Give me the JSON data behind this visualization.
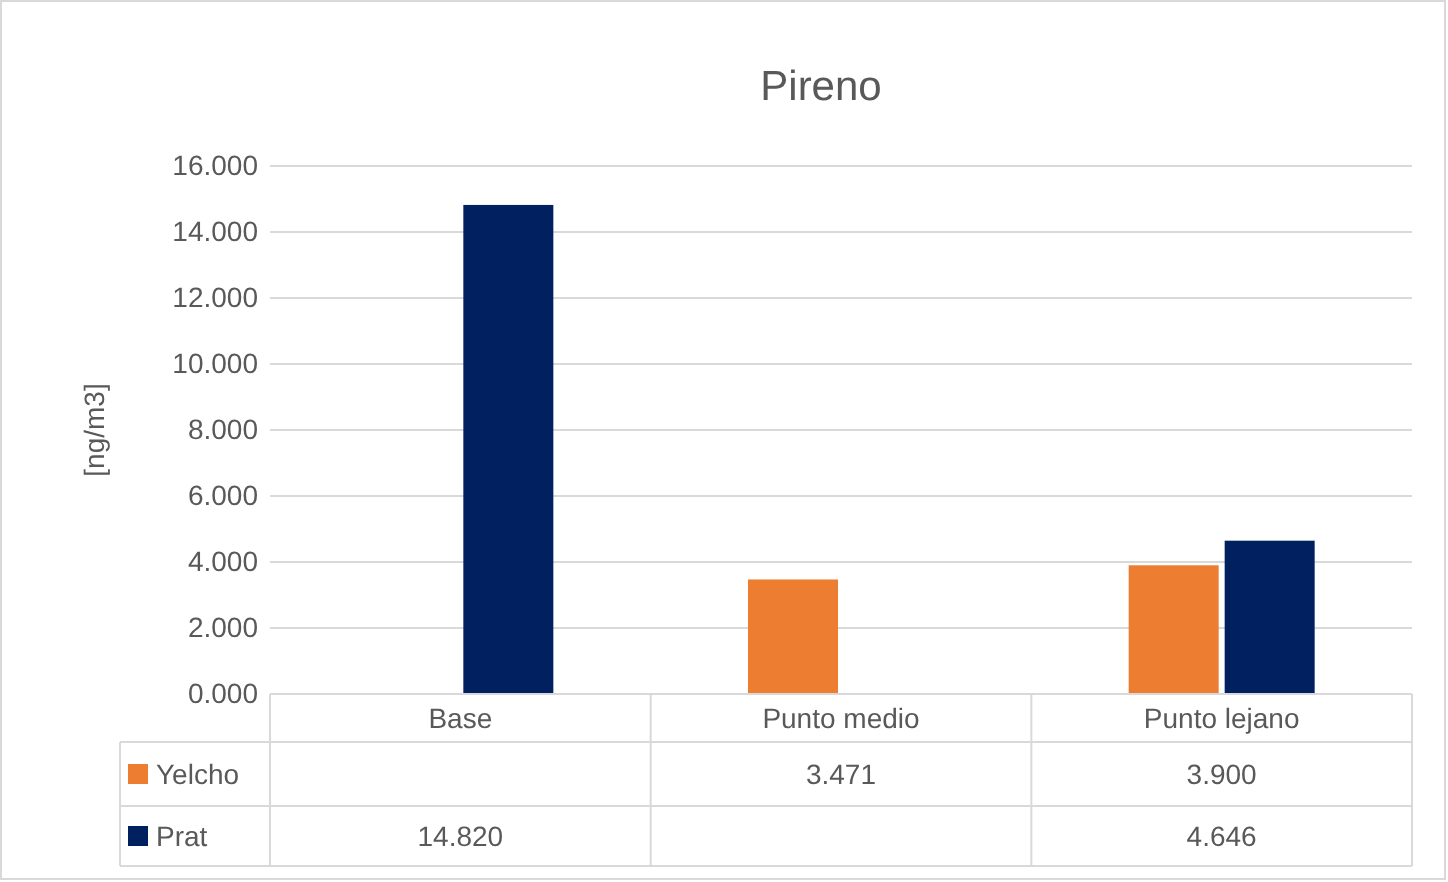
{
  "chart_data": {
    "type": "bar",
    "title": "Pireno",
    "ylabel": "[ng/m3]",
    "categories": [
      "Base",
      "Punto medio",
      "Punto lejano"
    ],
    "series": [
      {
        "name": "Yelcho",
        "color": "#ed7d31",
        "values": [
          null,
          3.471,
          3.9
        ],
        "value_labels": [
          null,
          "3.471",
          "3.900"
        ]
      },
      {
        "name": "Prat",
        "color": "#002060",
        "values": [
          14.82,
          null,
          4.646
        ],
        "value_labels": [
          "14.820",
          null,
          "4.646"
        ]
      }
    ],
    "ylim": [
      0,
      16
    ],
    "yticks": [
      {
        "value": 0,
        "label": "0.000"
      },
      {
        "value": 2,
        "label": "2.000"
      },
      {
        "value": 4,
        "label": "4.000"
      },
      {
        "value": 6,
        "label": "6.000"
      },
      {
        "value": 8,
        "label": "8.000"
      },
      {
        "value": 10,
        "label": "10.000"
      },
      {
        "value": 12,
        "label": "12.000"
      },
      {
        "value": 14,
        "label": "14.000"
      },
      {
        "value": 16,
        "label": "16.000"
      }
    ],
    "grid": "y",
    "legend": "bottom"
  }
}
